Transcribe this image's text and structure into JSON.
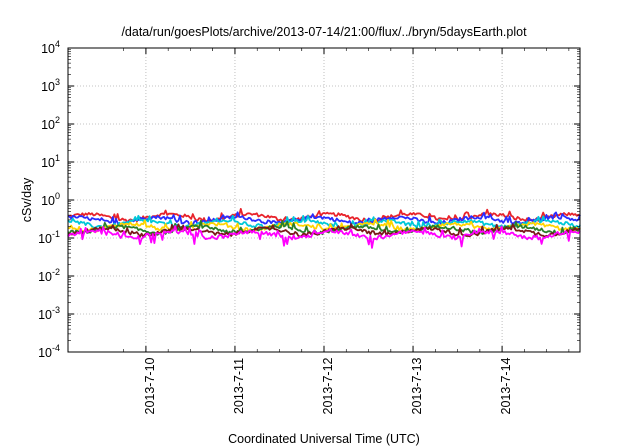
{
  "chart_data": {
    "type": "line",
    "title": "/data/run/goesPlots/archive/2013-07-14/21:00/flux/../bryn/5daysEarth.plot",
    "xlabel": "Coordinated Universal Time (UTC)",
    "ylabel": "cSv/day",
    "y_scale": "log",
    "ylim": [
      0.0001,
      10000
    ],
    "xlim": [
      "2013-07-09 03:00",
      "2013-07-14 21:00"
    ],
    "grid": true,
    "legend": "none",
    "y_ticks": [
      {
        "base": "10",
        "exp": "-4",
        "value": 0.0001
      },
      {
        "base": "10",
        "exp": "-3",
        "value": 0.001
      },
      {
        "base": "10",
        "exp": "-2",
        "value": 0.01
      },
      {
        "base": "10",
        "exp": "-1",
        "value": 0.1
      },
      {
        "base": "10",
        "exp": "0",
        "value": 1
      },
      {
        "base": "10",
        "exp": "1",
        "value": 10
      },
      {
        "base": "10",
        "exp": "2",
        "value": 100
      },
      {
        "base": "10",
        "exp": "3",
        "value": 1000
      },
      {
        "base": "10",
        "exp": "4",
        "value": 10000
      }
    ],
    "x_ticks": [
      {
        "label": "2013-7-10",
        "value": "2013-07-10 00:00"
      },
      {
        "label": "2013-7-11",
        "value": "2013-07-11 00:00"
      },
      {
        "label": "2013-7-12",
        "value": "2013-07-12 00:00"
      },
      {
        "label": "2013-7-13",
        "value": "2013-07-13 00:00"
      },
      {
        "label": "2013-7-14",
        "value": "2013-07-14 00:00"
      }
    ],
    "series": [
      {
        "color": "#e8232b",
        "typical": 0.36,
        "dips": false
      },
      {
        "color": "#2a2cff",
        "typical": 0.3,
        "dips": false
      },
      {
        "color": "#00c8d8",
        "typical": 0.24,
        "dips": false
      },
      {
        "color": "#ffd400",
        "typical": 0.2,
        "dips": false
      },
      {
        "color": "#2a7f2a",
        "typical": 0.17,
        "dips": false
      },
      {
        "color": "#7a1a1a",
        "typical": 0.15,
        "dips": false
      },
      {
        "color": "#ff00ff",
        "typical": 0.125,
        "dips": true
      }
    ]
  }
}
